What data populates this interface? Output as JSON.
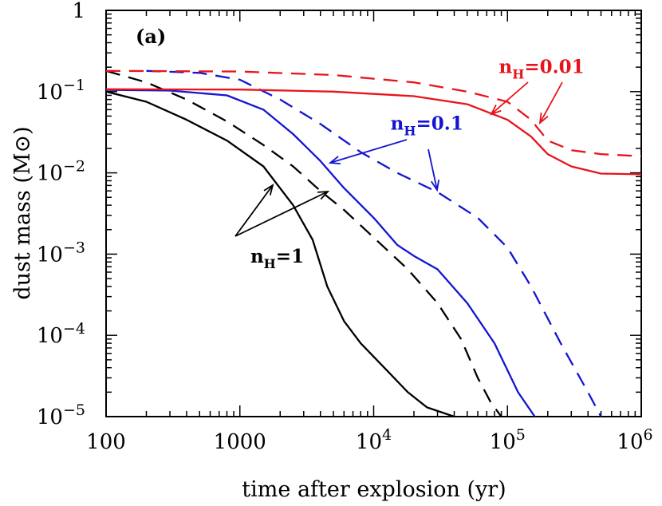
{
  "chart_data": {
    "type": "line",
    "panel_label": "(a)",
    "xlabel": "time after explosion (yr)",
    "ylabel": "dust mass (M⊙)",
    "xscale": "log",
    "yscale": "log",
    "xlim": [
      100,
      1000000
    ],
    "ylim": [
      1e-05,
      1
    ],
    "grid": false,
    "x_tick_labels": [
      {
        "value": 100,
        "base": "100",
        "exp": ""
      },
      {
        "value": 1000,
        "base": "1000",
        "exp": ""
      },
      {
        "value": 10000,
        "base": "10",
        "exp": "4"
      },
      {
        "value": 100000,
        "base": "10",
        "exp": "5"
      },
      {
        "value": 1000000,
        "base": "10",
        "exp": "6"
      }
    ],
    "y_tick_labels": [
      {
        "value": 1,
        "base": "1",
        "exp": ""
      },
      {
        "value": 0.1,
        "base": "10",
        "exp": "−1"
      },
      {
        "value": 0.01,
        "base": "10",
        "exp": "−2"
      },
      {
        "value": 0.001,
        "base": "10",
        "exp": "−3"
      },
      {
        "value": 0.0001,
        "base": "10",
        "exp": "−4"
      },
      {
        "value": 1e-05,
        "base": "10",
        "exp": "−5"
      }
    ],
    "annotations": [
      {
        "text_main": "n",
        "text_sub": "H",
        "text_tail": "=0.01",
        "color": "#e8131b",
        "x": 180000,
        "y": 0.17
      },
      {
        "text_main": "n",
        "text_sub": "H",
        "text_tail": "=0.1",
        "color": "#1414d2",
        "x": 25000,
        "y": 0.034
      },
      {
        "text_main": "n",
        "text_sub": "H",
        "text_tail": "=1",
        "color": "#000000",
        "x": 1900,
        "y": 0.00079
      }
    ],
    "series": [
      {
        "color": "#000000",
        "dash": "solid",
        "x": [
          100,
          200,
          400,
          800,
          1500,
          2500,
          3500,
          4500,
          6000,
          8000,
          12000,
          18000,
          25000,
          40000
        ],
        "y": [
          0.1,
          0.075,
          0.045,
          0.025,
          0.012,
          0.004,
          0.0015,
          0.0004,
          0.00015,
          8e-05,
          4e-05,
          2e-05,
          1.3e-05,
          1e-05
        ]
      },
      {
        "color": "#000000",
        "dash": "dashed",
        "x": [
          100,
          200,
          400,
          800,
          1500,
          2500,
          4000,
          6000,
          10000,
          18000,
          30000,
          45000,
          60000,
          75000,
          90000
        ],
        "y": [
          0.18,
          0.13,
          0.08,
          0.043,
          0.022,
          0.012,
          0.006,
          0.0035,
          0.0016,
          0.00065,
          0.00025,
          9e-05,
          3e-05,
          1.5e-05,
          1e-05
        ]
      },
      {
        "color": "#1414d2",
        "dash": "solid",
        "x": [
          100,
          300,
          800,
          1500,
          2500,
          4000,
          6000,
          10000,
          15000,
          20000,
          30000,
          50000,
          80000,
          120000,
          160000
        ],
        "y": [
          0.105,
          0.103,
          0.09,
          0.06,
          0.03,
          0.014,
          0.0065,
          0.0028,
          0.0013,
          0.00095,
          0.00065,
          0.00025,
          8e-05,
          2e-05,
          1e-05
        ]
      },
      {
        "color": "#1414d2",
        "dash": "dashed",
        "x": [
          200,
          500,
          1000,
          2000,
          4000,
          8000,
          15000,
          30000,
          60000,
          100000,
          150000,
          250000,
          400000,
          500000
        ],
        "y": [
          0.18,
          0.17,
          0.14,
          0.08,
          0.04,
          0.018,
          0.01,
          0.0058,
          0.0028,
          0.0012,
          0.0004,
          8e-05,
          2e-05,
          1e-05
        ]
      },
      {
        "color": "#e8131b",
        "dash": "solid",
        "x": [
          100,
          1000,
          5000,
          20000,
          50000,
          100000,
          150000,
          200000,
          300000,
          500000,
          1000000
        ],
        "y": [
          0.107,
          0.106,
          0.1,
          0.088,
          0.07,
          0.045,
          0.028,
          0.017,
          0.012,
          0.0098,
          0.0096
        ]
      },
      {
        "color": "#e8131b",
        "dash": "dashed",
        "x": [
          100,
          1000,
          5000,
          20000,
          50000,
          100000,
          150000,
          200000,
          300000,
          500000,
          1000000
        ],
        "y": [
          0.18,
          0.177,
          0.16,
          0.13,
          0.1,
          0.075,
          0.045,
          0.025,
          0.019,
          0.017,
          0.016
        ]
      }
    ]
  }
}
